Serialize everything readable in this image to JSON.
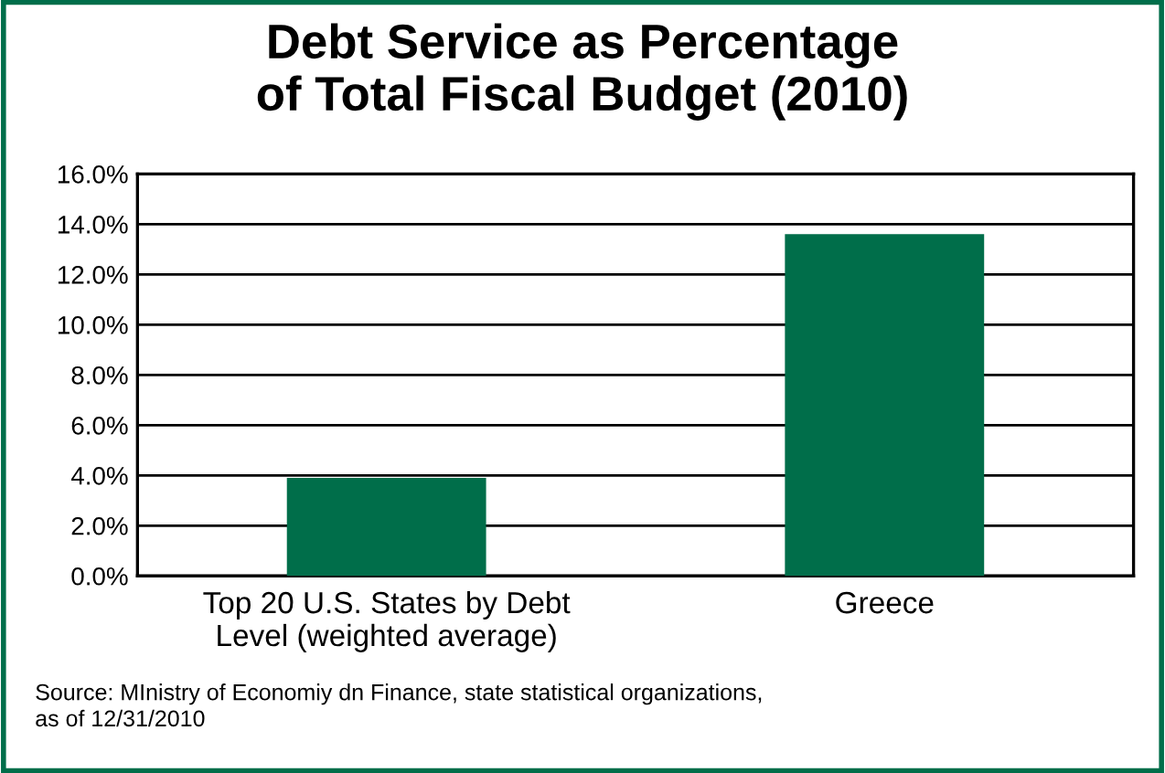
{
  "chart_data": {
    "type": "bar",
    "title": "Debt Service as Percentage\nof Total Fiscal Budget (2010)",
    "categories": [
      "Top 20 U.S. States by Debt\nLevel (weighted average)",
      "Greece"
    ],
    "values": [
      3.9,
      13.6
    ],
    "color": "#006e4a",
    "ylim": [
      0,
      16
    ],
    "yticks": [
      {
        "value": 0,
        "label": "0.0%"
      },
      {
        "value": 2,
        "label": "2.0%"
      },
      {
        "value": 4,
        "label": "4.0%"
      },
      {
        "value": 6,
        "label": "6.0%"
      },
      {
        "value": 8,
        "label": "8.0%"
      },
      {
        "value": 10,
        "label": "10.0%"
      },
      {
        "value": 12,
        "label": "12.0%"
      },
      {
        "value": 14,
        "label": "14.0%"
      },
      {
        "value": 16,
        "label": "16.0%"
      }
    ],
    "grid": "y",
    "legend": false,
    "annotations": [
      "Source: MInistry of Economiy dn Finance, state statistical organizations,\nas of 12/31/2010"
    ]
  }
}
